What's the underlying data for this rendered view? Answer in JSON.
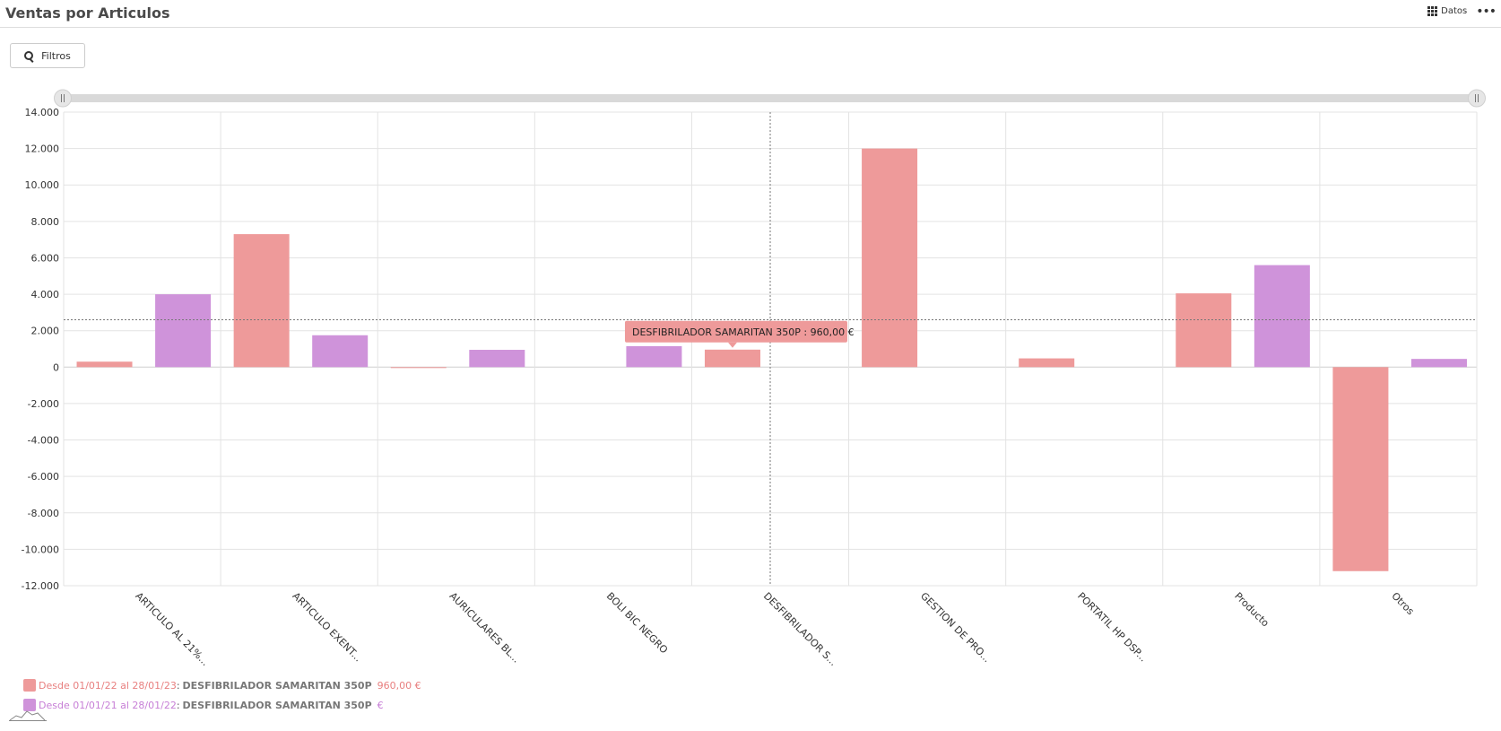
{
  "header": {
    "title": "Ventas por Articulos",
    "datos_label": "Datos",
    "more_label": "•••",
    "filtros_label": "Filtros"
  },
  "tooltip": {
    "text": "DESFIBRILADOR SAMARITAN 350P : 960,00 €"
  },
  "legend": {
    "series_a": {
      "range": "Desde 01/01/22 al 28/01/23",
      "item": "DESFIBRILADOR SAMARITAN 350P",
      "value": "960,00 €"
    },
    "series_b": {
      "range": "Desde 01/01/21 al 28/01/22",
      "item": "DESFIBRILADOR SAMARITAN 350P",
      "value": "€"
    },
    "separator": ":"
  },
  "colors": {
    "series_a": "#ee9a9a",
    "series_b": "#cf93da",
    "grid": "#e3e3e3",
    "scrollbar": "#d9d9d9"
  },
  "chart_data": {
    "type": "bar",
    "title": "",
    "xlabel": "",
    "ylabel": "",
    "ylim": [
      -12000,
      14000
    ],
    "yticks": [
      14000,
      12000,
      10000,
      8000,
      6000,
      4000,
      2000,
      0,
      -2000,
      -4000,
      -6000,
      -8000,
      -10000,
      -12000
    ],
    "ytick_labels": [
      "14.000",
      "12.000",
      "10.000",
      "8.000",
      "6.000",
      "4.000",
      "2.000",
      "0",
      "-2.000",
      "-4.000",
      "-6.000",
      "-8.000",
      "-10.000",
      "-12.000"
    ],
    "categories": [
      "ARTICULO AL 21%...",
      "ARTICULO EXENT...",
      "AURICULARES BL...",
      "BOLI BIC NEGRO",
      "DESFIBRILADOR S...",
      "GESTION DE PRO...",
      "PORTATIL HP DSP...",
      "Producto",
      "Otros"
    ],
    "series": [
      {
        "values": [
          300,
          7300,
          -50,
          0,
          960,
          12000,
          480,
          4050,
          -11200
        ]
      },
      {
        "values": [
          4000,
          1750,
          950,
          1150,
          0,
          0,
          0,
          5600,
          450
        ]
      }
    ],
    "grid": true,
    "legend_position": "bottom-left",
    "crosshair_value": 2600
  }
}
